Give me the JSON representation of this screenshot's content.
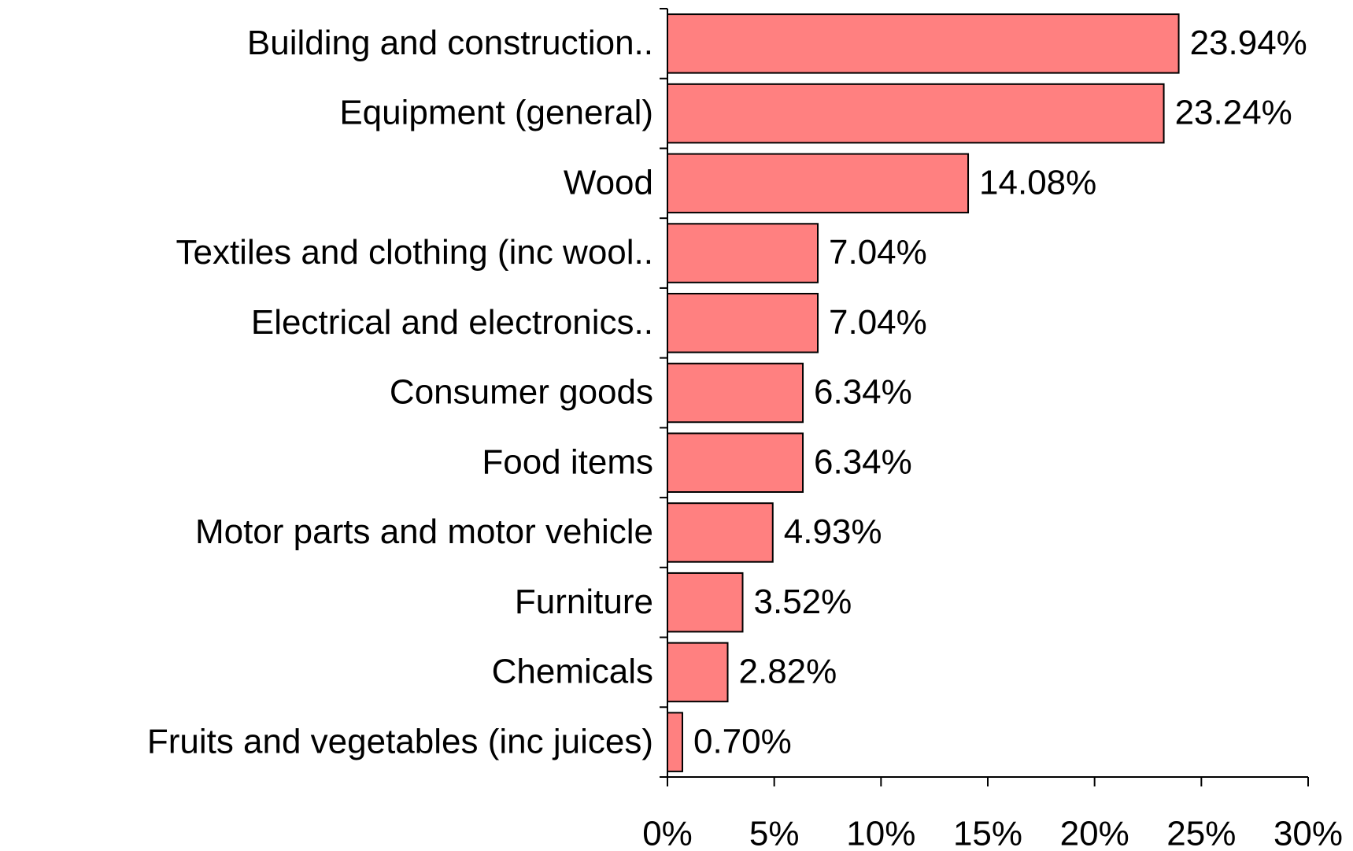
{
  "chart_data": {
    "type": "barh",
    "categories": [
      "Building and construction..",
      "Equipment (general)",
      "Wood",
      "Textiles and clothing (inc wool..",
      "Electrical and electronics..",
      "Consumer goods",
      "Food items",
      "Motor parts and motor vehicle",
      "Furniture",
      "Chemicals",
      "Fruits and vegetables (inc juices)"
    ],
    "values": [
      23.94,
      23.24,
      14.08,
      7.04,
      7.04,
      6.34,
      6.34,
      4.93,
      3.52,
      2.82,
      0.7
    ],
    "value_labels": [
      "23.94%",
      "23.24%",
      "14.08%",
      "7.04%",
      "7.04%",
      "6.34%",
      "6.34%",
      "4.93%",
      "3.52%",
      "2.82%",
      "0.70%"
    ],
    "color": "#ff8080",
    "xlim": [
      0,
      30
    ],
    "xticks": [
      {
        "value": 0,
        "label": "0%"
      },
      {
        "value": 5,
        "label": "5%"
      },
      {
        "value": 10,
        "label": "10%"
      },
      {
        "value": 15,
        "label": "15%"
      },
      {
        "value": 20,
        "label": "20%"
      },
      {
        "value": 25,
        "label": "25%"
      },
      {
        "value": 30,
        "label": "30%"
      }
    ]
  }
}
